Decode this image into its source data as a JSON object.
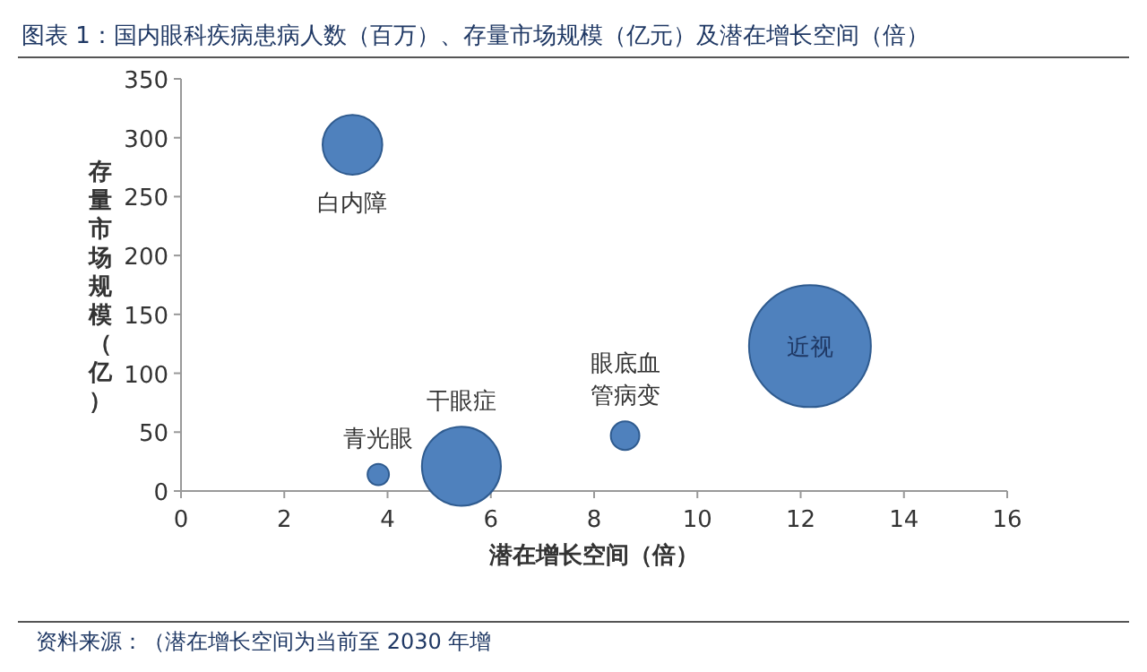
{
  "chart_data": {
    "type": "bubble",
    "title": "图表 1：国内眼科疾病患病人数（百万）、存量市场规模（亿元）及潜在增长空间（倍）",
    "xlabel": "潜在增长空间（倍）",
    "ylabel": "存量市场规模（亿）",
    "xlim": [
      0,
      16
    ],
    "xticks": [
      0,
      2,
      4,
      6,
      8,
      10,
      12,
      14,
      16
    ],
    "ylim": [
      0,
      350
    ],
    "yticks": [
      0,
      50,
      100,
      150,
      200,
      250,
      300,
      350
    ],
    "series": [
      {
        "name": "白内障",
        "color": "#4f81bd",
        "x": [
          3.32
        ],
        "values": [
          294
        ],
        "sizes": [
          0.24
        ]
      },
      {
        "name": "青光眼",
        "color": "#4f81bd",
        "x": [
          3.82
        ],
        "values": [
          14
        ],
        "sizes": [
          0.031
        ]
      },
      {
        "name": "干眼症",
        "color": "#4f81bd",
        "x": [
          5.43
        ],
        "values": [
          21
        ],
        "sizes": [
          0.42
        ]
      },
      {
        "name": "眼底血管病变",
        "color": "#4f81bd",
        "x": [
          8.6
        ],
        "values": [
          47
        ],
        "sizes": [
          0.055
        ]
      },
      {
        "name": "近视",
        "color": "#4f81bd",
        "x": [
          12.18
        ],
        "values": [
          123
        ],
        "sizes": [
          1
        ]
      }
    ],
    "annotations": [
      "资料来源：（潜在增长空间为当前至 2030 年增"
    ],
    "grid": false,
    "legend": false
  }
}
